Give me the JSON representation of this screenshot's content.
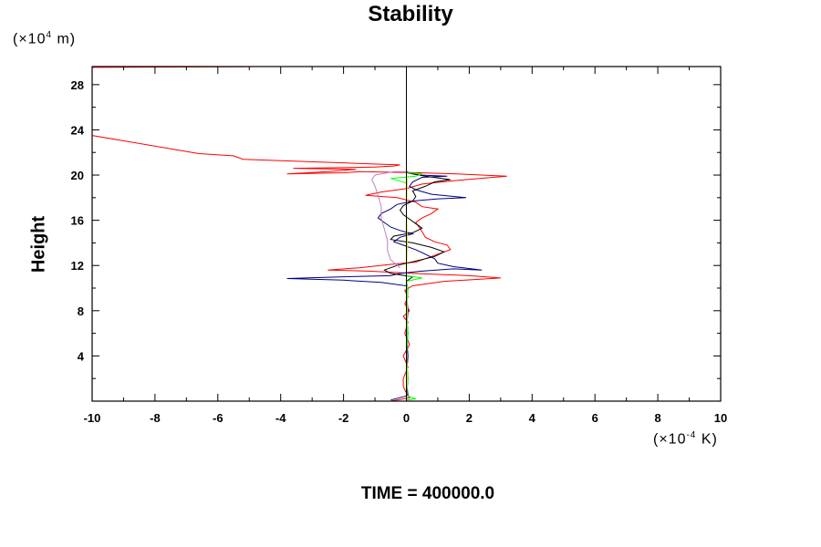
{
  "chart_data": {
    "type": "line",
    "title": "Stability",
    "ylabel": "Height",
    "y_unit_prefix": "(×10",
    "y_unit_exp": "4",
    "y_unit_suffix": " m)",
    "x_unit_prefix": "(×10",
    "x_unit_exp": "-4",
    "x_unit_suffix": " K)",
    "footer": "TIME = 400000.0",
    "xlim": [
      -10,
      10
    ],
    "ylim": [
      0,
      29.6
    ],
    "x_ticks": [
      -10,
      -8,
      -6,
      -4,
      -2,
      0,
      2,
      4,
      6,
      8,
      10
    ],
    "y_ticks": [
      4,
      8,
      12,
      16,
      20,
      24,
      28
    ],
    "grid": false,
    "zero_line": true,
    "series": [
      {
        "color": "#ff0000",
        "points": [
          [
            -0.5,
            0.0
          ],
          [
            0.1,
            0.3
          ],
          [
            0.0,
            0.7
          ],
          [
            -0.1,
            1.3
          ],
          [
            -0.1,
            2.0
          ],
          [
            0.05,
            3.0
          ],
          [
            -0.1,
            4.0
          ],
          [
            0.1,
            5.0
          ],
          [
            -0.05,
            6.0
          ],
          [
            0.05,
            7.0
          ],
          [
            -0.1,
            7.5
          ],
          [
            0.1,
            8.0
          ],
          [
            -0.05,
            8.6
          ],
          [
            0.05,
            9.2
          ],
          [
            -0.05,
            9.8
          ],
          [
            0.2,
            10.2
          ],
          [
            1.2,
            10.6
          ],
          [
            3.0,
            10.9
          ],
          [
            2.0,
            11.1
          ],
          [
            0.2,
            11.3
          ],
          [
            -1.2,
            11.5
          ],
          [
            -2.5,
            11.6
          ],
          [
            -1.5,
            11.8
          ],
          [
            -0.5,
            12.1
          ],
          [
            0.3,
            12.3
          ],
          [
            0.6,
            12.6
          ],
          [
            1.0,
            13.0
          ],
          [
            1.4,
            13.4
          ],
          [
            1.3,
            13.8
          ],
          [
            0.9,
            14.1
          ],
          [
            0.6,
            14.5
          ],
          [
            0.5,
            15.0
          ],
          [
            0.4,
            15.4
          ],
          [
            0.3,
            15.8
          ],
          [
            0.5,
            16.2
          ],
          [
            0.8,
            16.6
          ],
          [
            1.0,
            17.0
          ],
          [
            0.5,
            17.2
          ],
          [
            0.3,
            17.6
          ],
          [
            -0.3,
            18.0
          ],
          [
            -1.3,
            18.2
          ],
          [
            -0.8,
            18.5
          ],
          [
            0.0,
            18.8
          ],
          [
            0.5,
            19.2
          ],
          [
            1.5,
            19.5
          ],
          [
            3.2,
            19.9
          ],
          [
            1.6,
            20.1
          ],
          [
            0.4,
            20.2
          ],
          [
            -1.5,
            20.3
          ],
          [
            -2.0,
            20.2
          ],
          [
            -3.8,
            20.1
          ],
          [
            -2.5,
            20.3
          ],
          [
            -1.6,
            20.5
          ],
          [
            -3.6,
            20.6
          ],
          [
            -1.0,
            20.7
          ],
          [
            -0.4,
            20.8
          ],
          [
            -0.2,
            20.9
          ],
          [
            -5.2,
            21.4
          ],
          [
            -5.5,
            21.7
          ],
          [
            -6.6,
            21.9
          ],
          [
            -10.0,
            23.5
          ]
        ]
      },
      {
        "color": "#000080",
        "points": [
          [
            -0.5,
            0.1
          ],
          [
            0.05,
            0.5
          ],
          [
            0.0,
            2.0
          ],
          [
            0.05,
            4.0
          ],
          [
            0.0,
            6.0
          ],
          [
            0.05,
            8.0
          ],
          [
            0.0,
            9.6
          ],
          [
            0.0,
            10.2
          ],
          [
            -0.8,
            10.5
          ],
          [
            -2.0,
            10.7
          ],
          [
            -3.8,
            10.85
          ],
          [
            -2.0,
            11.0
          ],
          [
            -0.5,
            11.1
          ],
          [
            -0.2,
            11.3
          ],
          [
            0.5,
            11.5
          ],
          [
            1.5,
            11.7
          ],
          [
            2.4,
            11.6
          ],
          [
            1.5,
            11.9
          ],
          [
            1.0,
            12.2
          ],
          [
            0.9,
            12.6
          ],
          [
            0.6,
            13.0
          ],
          [
            0.3,
            13.4
          ],
          [
            -0.1,
            13.8
          ],
          [
            -0.4,
            14.1
          ],
          [
            -0.2,
            14.5
          ],
          [
            0.2,
            14.8
          ],
          [
            -0.2,
            15.1
          ],
          [
            -0.5,
            15.4
          ],
          [
            -0.7,
            15.8
          ],
          [
            -0.9,
            16.2
          ],
          [
            -0.8,
            16.6
          ],
          [
            -0.5,
            17.0
          ],
          [
            -0.3,
            17.4
          ],
          [
            0.2,
            17.7
          ],
          [
            1.0,
            17.9
          ],
          [
            1.9,
            18.0
          ],
          [
            0.8,
            18.3
          ],
          [
            0.3,
            18.7
          ],
          [
            0.1,
            19.0
          ],
          [
            0.2,
            19.4
          ],
          [
            0.5,
            19.8
          ],
          [
            1.3,
            19.9
          ],
          [
            0.4,
            20.0
          ],
          [
            0.0,
            20.2
          ]
        ]
      },
      {
        "color": "#000000",
        "points": [
          [
            0.0,
            0.2
          ],
          [
            0.05,
            2.0
          ],
          [
            0.0,
            4.0
          ],
          [
            0.05,
            6.0
          ],
          [
            0.0,
            8.0
          ],
          [
            0.05,
            10.0
          ],
          [
            0.0,
            10.6
          ],
          [
            0.2,
            11.0
          ],
          [
            -0.5,
            11.3
          ],
          [
            -0.7,
            11.6
          ],
          [
            -0.3,
            12.0
          ],
          [
            0.3,
            12.4
          ],
          [
            0.9,
            12.8
          ],
          [
            1.2,
            13.2
          ],
          [
            0.8,
            13.6
          ],
          [
            0.2,
            14.0
          ],
          [
            -0.5,
            14.3
          ],
          [
            -0.4,
            14.6
          ],
          [
            0.2,
            14.9
          ],
          [
            0.5,
            15.3
          ],
          [
            0.3,
            15.7
          ],
          [
            0.1,
            16.1
          ],
          [
            -0.1,
            16.5
          ],
          [
            -0.2,
            16.9
          ],
          [
            -0.1,
            17.3
          ],
          [
            0.2,
            17.7
          ],
          [
            0.3,
            18.1
          ],
          [
            0.2,
            18.6
          ],
          [
            0.6,
            19.0
          ],
          [
            0.9,
            19.4
          ],
          [
            1.4,
            19.6
          ],
          [
            0.6,
            19.9
          ],
          [
            0.2,
            20.1
          ],
          [
            0.0,
            20.3
          ]
        ]
      },
      {
        "color": "#c080c0",
        "points": [
          [
            -0.2,
            11.8
          ],
          [
            -0.5,
            12.5
          ],
          [
            -0.6,
            13.3
          ],
          [
            -0.6,
            14.2
          ],
          [
            -0.7,
            15.2
          ],
          [
            -0.8,
            16.2
          ],
          [
            -0.8,
            17.2
          ],
          [
            -0.9,
            18.2
          ],
          [
            -1.0,
            19.0
          ],
          [
            -1.1,
            19.6
          ],
          [
            -1.0,
            20.0
          ],
          [
            -0.4,
            20.3
          ],
          [
            0.0,
            20.3
          ]
        ]
      },
      {
        "color": "#00ff00",
        "points": [
          [
            0.0,
            0.1
          ],
          [
            0.3,
            0.2
          ],
          [
            0.0,
            0.5
          ],
          [
            0.05,
            2.0
          ],
          [
            0.0,
            4.0
          ],
          [
            0.05,
            6.0
          ],
          [
            0.0,
            8.0
          ],
          [
            0.05,
            10.0
          ],
          [
            0.0,
            10.6
          ],
          [
            0.5,
            10.9
          ],
          [
            0.0,
            11.1
          ],
          [
            0.0,
            12.0
          ],
          [
            0.0,
            16.0
          ],
          [
            0.0,
            18.5
          ],
          [
            0.0,
            19.3
          ],
          [
            -0.5,
            19.7
          ],
          [
            0.3,
            19.9
          ],
          [
            0.5,
            20.1
          ],
          [
            0.0,
            20.2
          ]
        ]
      },
      {
        "color": "#e0e000",
        "points": [
          [
            0.0,
            0.1
          ],
          [
            0.03,
            2.0
          ],
          [
            0.0,
            5.0
          ],
          [
            0.03,
            8.0
          ],
          [
            0.0,
            11.0
          ],
          [
            0.03,
            14.0
          ],
          [
            0.0,
            17.0
          ],
          [
            0.03,
            19.5
          ],
          [
            0.0,
            20.2
          ]
        ]
      }
    ]
  }
}
